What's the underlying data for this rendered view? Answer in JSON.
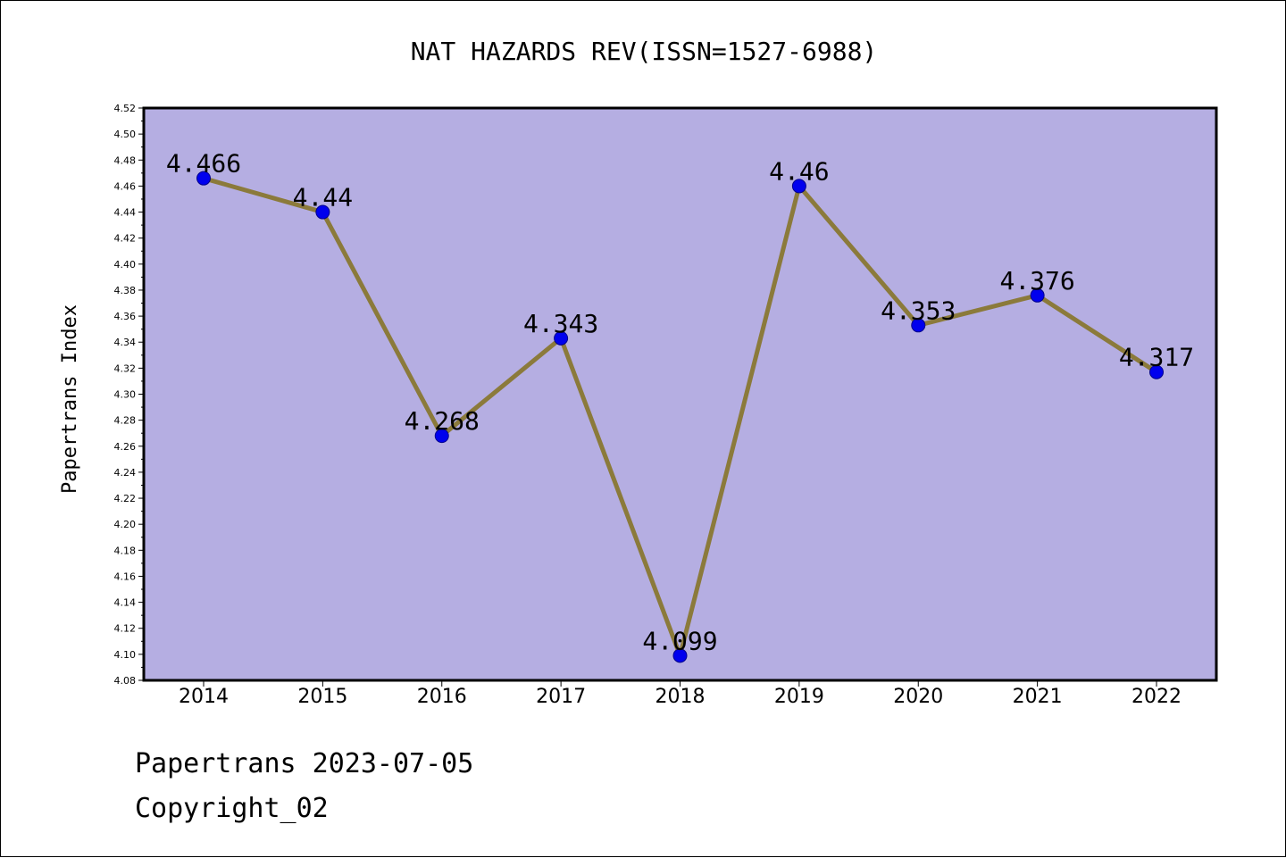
{
  "footer": {
    "line1": "Papertrans 2023-07-05",
    "line2": "Copyright_02"
  },
  "chart_data": {
    "type": "line",
    "title": "NAT HAZARDS REV(ISSN=1527-6988)",
    "xlabel": "",
    "ylabel": "Papertrans Index",
    "categories": [
      "2014",
      "2015",
      "2016",
      "2017",
      "2018",
      "2019",
      "2020",
      "2021",
      "2022"
    ],
    "values": [
      4.466,
      4.44,
      4.268,
      4.343,
      4.099,
      4.46,
      4.353,
      4.376,
      4.317
    ],
    "data_labels": [
      "4.466",
      "4.44",
      "4.268",
      "4.343",
      "4.099",
      "4.46",
      "4.353",
      "4.376",
      "4.317"
    ],
    "ylim": [
      4.08,
      4.52
    ],
    "ytick_step": 0.02,
    "grid": false,
    "legend": "none",
    "colors": {
      "plot_background": "#b5aee2",
      "line": "#8b7a3b",
      "marker": "#0000ee",
      "marker_edge": "#00008b"
    }
  }
}
